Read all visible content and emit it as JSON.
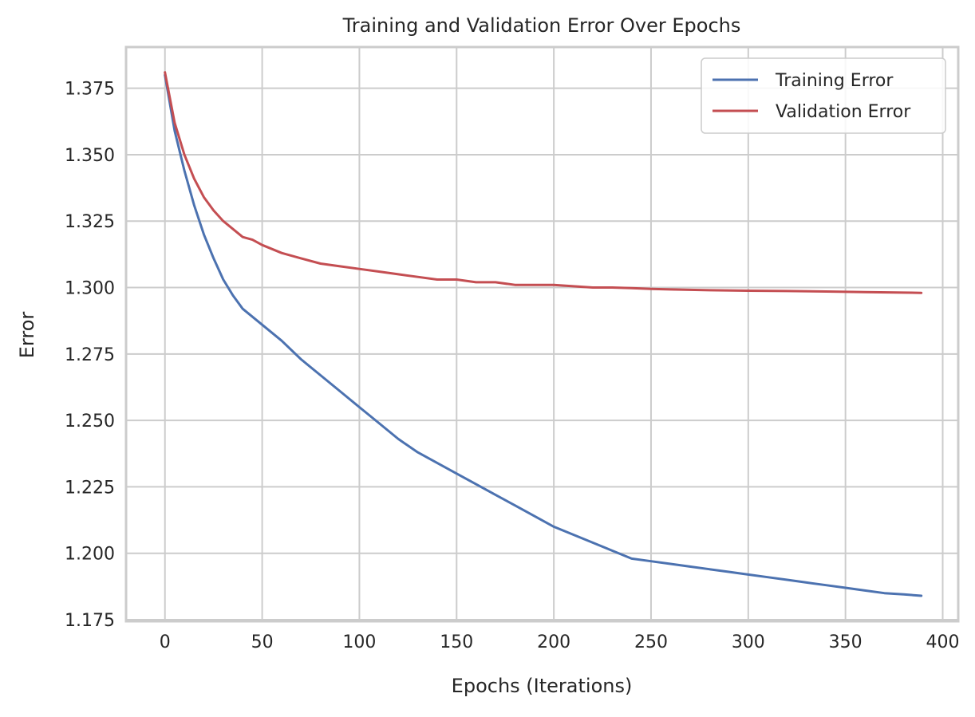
{
  "chart_data": {
    "type": "line",
    "title": "Training and Validation Error Over Epochs",
    "xlabel": "Epochs (Iterations)",
    "ylabel": "Error",
    "xlim": [
      -20,
      408
    ],
    "ylim": [
      1.1744,
      1.3905
    ],
    "xticks": [
      0,
      50,
      100,
      150,
      200,
      250,
      300,
      350,
      400
    ],
    "xtick_labels": [
      "0",
      "50",
      "100",
      "150",
      "200",
      "250",
      "300",
      "350",
      "400"
    ],
    "yticks": [
      1.175,
      1.2,
      1.225,
      1.25,
      1.275,
      1.3,
      1.325,
      1.35,
      1.375
    ],
    "ytick_labels": [
      "1.175",
      "1.200",
      "1.225",
      "1.250",
      "1.275",
      "1.300",
      "1.325",
      "1.350",
      "1.375"
    ],
    "grid": true,
    "legend": "top-right",
    "series": [
      {
        "name": "Training Error",
        "color": "#4c72b0",
        "x": [
          0,
          5,
          10,
          15,
          20,
          25,
          30,
          35,
          40,
          45,
          50,
          55,
          60,
          70,
          80,
          90,
          100,
          110,
          120,
          130,
          140,
          150,
          160,
          170,
          180,
          190,
          200,
          210,
          220,
          230,
          240,
          250,
          260,
          270,
          280,
          290,
          300,
          310,
          320,
          330,
          340,
          350,
          360,
          370,
          380,
          389
        ],
        "y": [
          1.38,
          1.359,
          1.344,
          1.331,
          1.32,
          1.311,
          1.303,
          1.297,
          1.292,
          1.289,
          1.286,
          1.283,
          1.28,
          1.273,
          1.267,
          1.261,
          1.255,
          1.249,
          1.243,
          1.238,
          1.234,
          1.23,
          1.226,
          1.222,
          1.218,
          1.214,
          1.21,
          1.207,
          1.204,
          1.201,
          1.198,
          1.197,
          1.196,
          1.195,
          1.194,
          1.193,
          1.192,
          1.191,
          1.19,
          1.189,
          1.188,
          1.187,
          1.186,
          1.185,
          1.1845,
          1.184
        ]
      },
      {
        "name": "Validation Error",
        "color": "#c44e52",
        "x": [
          0,
          5,
          10,
          15,
          20,
          25,
          30,
          35,
          40,
          45,
          50,
          60,
          70,
          80,
          90,
          100,
          110,
          120,
          130,
          140,
          150,
          160,
          170,
          180,
          190,
          200,
          210,
          220,
          230,
          240,
          250,
          260,
          280,
          300,
          320,
          340,
          360,
          380,
          389
        ],
        "y": [
          1.381,
          1.362,
          1.35,
          1.341,
          1.334,
          1.329,
          1.325,
          1.322,
          1.319,
          1.318,
          1.316,
          1.313,
          1.311,
          1.309,
          1.308,
          1.307,
          1.306,
          1.305,
          1.304,
          1.303,
          1.303,
          1.302,
          1.302,
          1.301,
          1.301,
          1.301,
          1.3005,
          1.3,
          1.3,
          1.2998,
          1.2995,
          1.2993,
          1.299,
          1.2988,
          1.2987,
          1.2985,
          1.2983,
          1.2981,
          1.298
        ]
      }
    ]
  }
}
